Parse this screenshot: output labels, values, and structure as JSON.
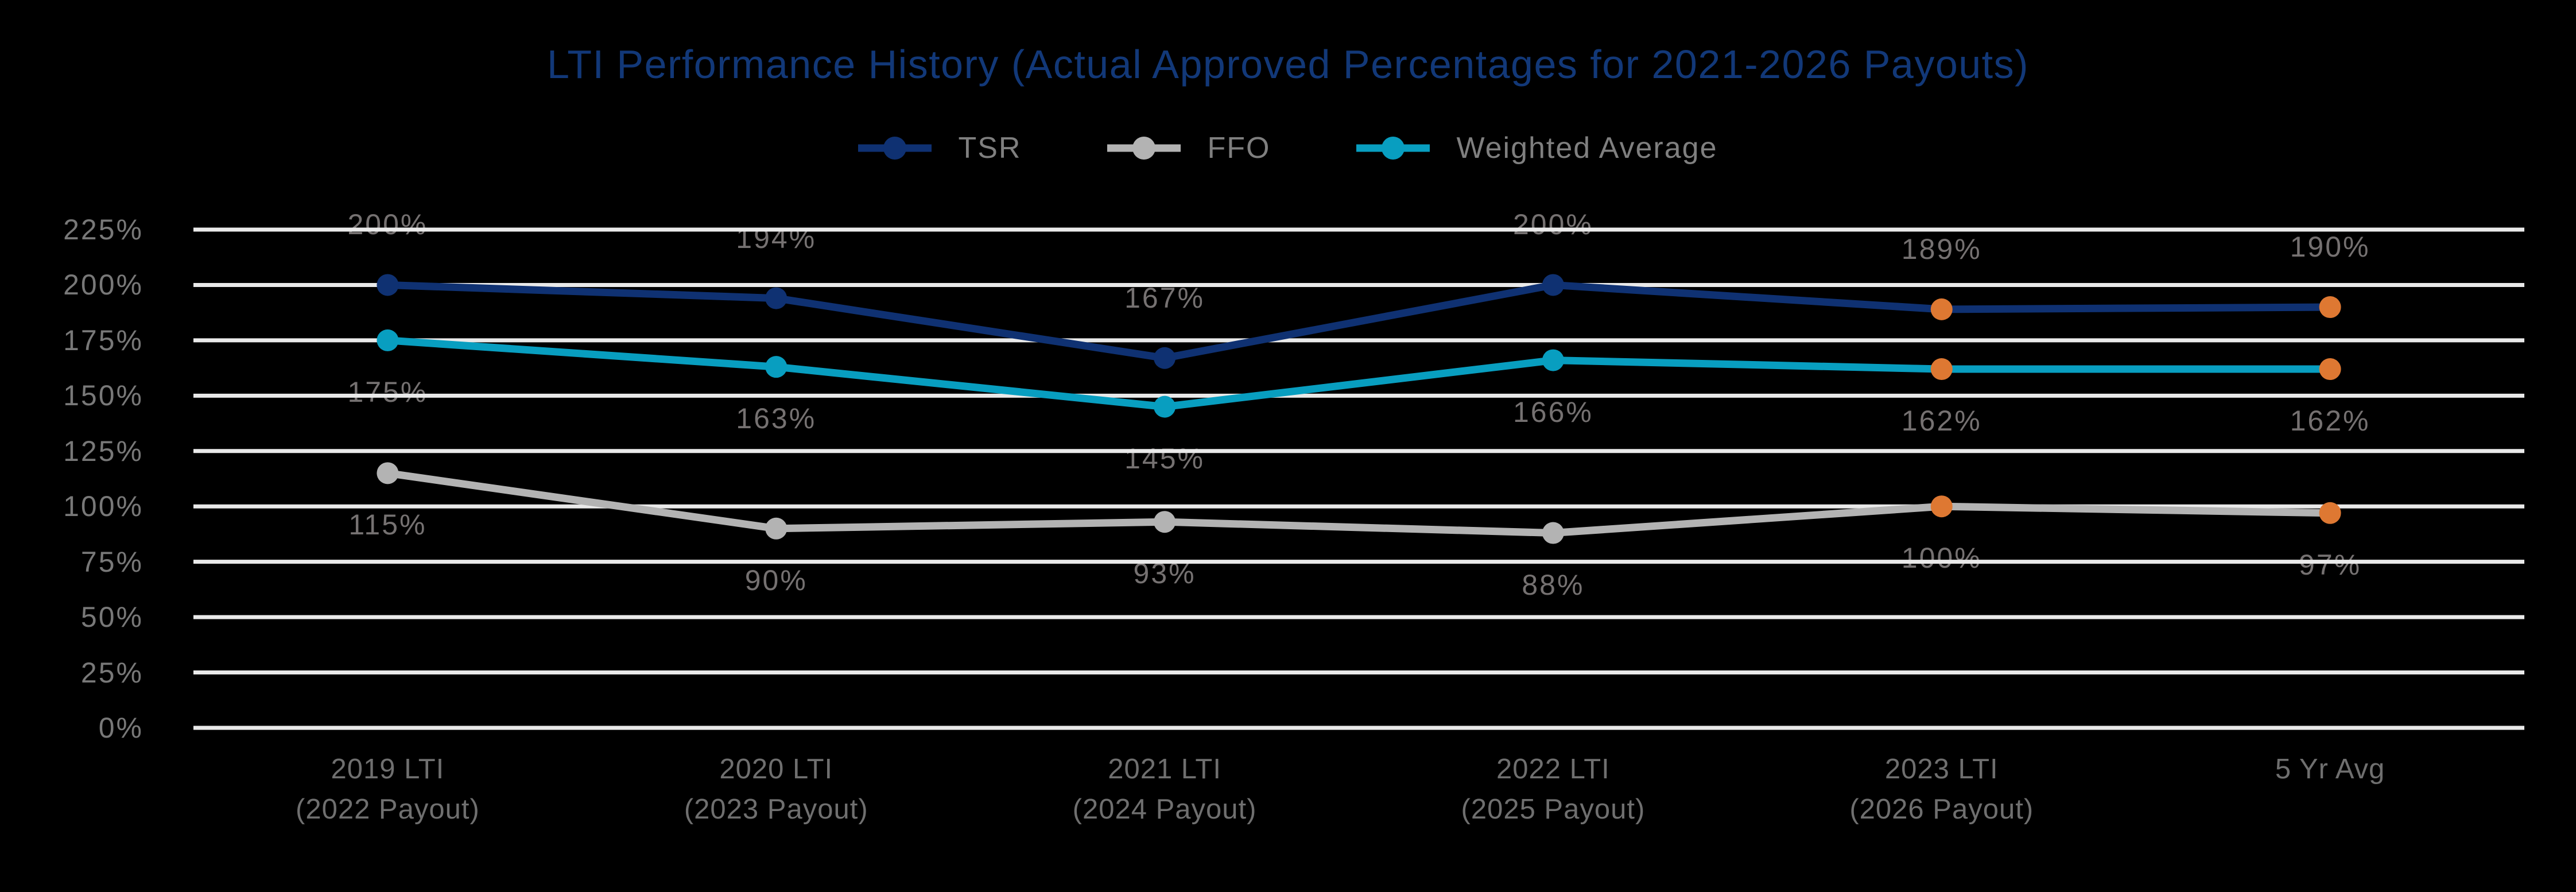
{
  "colors": {
    "background": "#000000",
    "title": "#123878",
    "gridline": "#E9E9E9",
    "axis_text": "#787878",
    "data_label_text": "#757171",
    "category_text": "#6F6F6F",
    "legend_text": "#7F7F7F",
    "highlight": "#DE7832"
  },
  "chart_data": {
    "type": "line",
    "title": "LTI Performance History (Actual Approved Percentages for 2021-2026 Payouts)",
    "categories": [
      "2019 LTI\n(2022 Payout)",
      "2020 LTI\n(2023 Payout)",
      "2021 LTI\n(2024 Payout)",
      "2022 LTI\n(2025 Payout)",
      "2023 LTI\n(2026 Payout)",
      "5 Yr Avg"
    ],
    "series": [
      {
        "name": "TSR",
        "color": "#0F3172",
        "values": [
          200,
          194,
          167,
          200,
          189,
          190
        ],
        "data_labels": [
          "200%",
          "194%",
          "167%",
          "200%",
          "189%",
          "190%"
        ],
        "label_position": "above",
        "point_colors": [
          "#0F3172",
          "#0F3172",
          "#0F3172",
          "#0F3172",
          "#DE7832",
          "#DE7832"
        ]
      },
      {
        "name": "FFO",
        "color": "#B3B3B3",
        "values": [
          115,
          90,
          93,
          88,
          100,
          97
        ],
        "data_labels": [
          "115%",
          "90%",
          "93%",
          "88%",
          "100%",
          "97%"
        ],
        "label_position": "below",
        "point_colors": [
          "#B3B3B3",
          "#B3B3B3",
          "#B3B3B3",
          "#B3B3B3",
          "#DE7832",
          "#DE7832"
        ]
      },
      {
        "name": "Weighted Average",
        "color": "#089EC0",
        "values": [
          175,
          163,
          145,
          166,
          162,
          162
        ],
        "data_labels": [
          "175%",
          "163%",
          "145%",
          "166%",
          "162%",
          "162%"
        ],
        "label_position": "below",
        "point_colors": [
          "#089EC0",
          "#089EC0",
          "#089EC0",
          "#089EC0",
          "#DE7832",
          "#DE7832"
        ]
      }
    ],
    "y_axis": {
      "min": 0,
      "max": 225,
      "step": 25,
      "suffix": "%",
      "tick_labels": [
        "0%",
        "25%",
        "50%",
        "75%",
        "100%",
        "125%",
        "150%",
        "175%",
        "200%",
        "225%"
      ]
    },
    "grid": true,
    "legend_position": "top"
  }
}
